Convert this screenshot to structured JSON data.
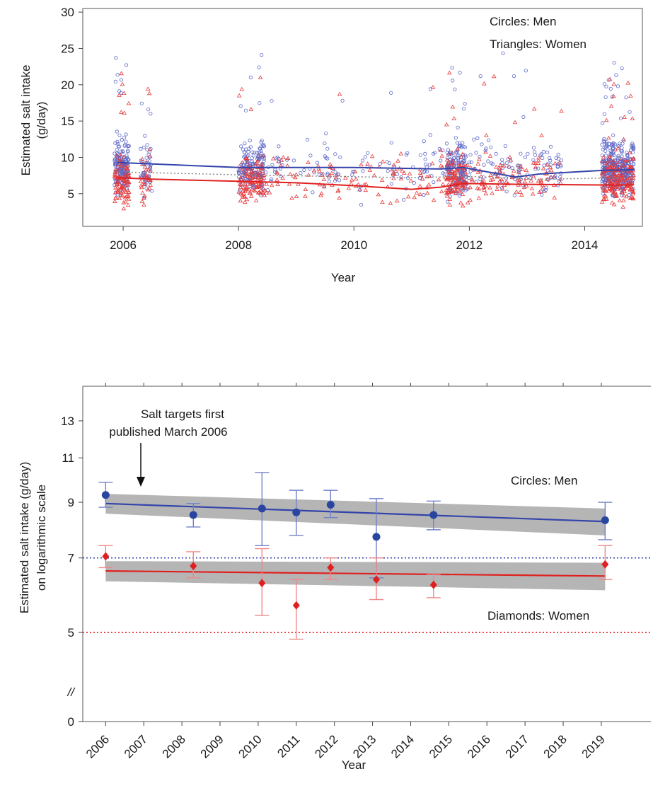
{
  "chart_data": [
    {
      "type": "scatter",
      "xlabel": "Year",
      "ylabel_lines": [
        "Estimated  salt intake",
        "(g/day)"
      ],
      "xlim": [
        2005.3,
        2015.0
      ],
      "ylim": [
        0.5,
        30.5
      ],
      "xticks": [
        "2006",
        "2008",
        "2010",
        "2012",
        "2014"
      ],
      "yticks": [
        "5",
        "10",
        "15",
        "20",
        "25",
        "30"
      ],
      "annotations": [
        "Circles: Men",
        "Triangles: Women"
      ],
      "survey_clusters": [
        {
          "x_start": 2005.85,
          "x_end": 2006.1,
          "density": "high"
        },
        {
          "x_start": 2006.3,
          "x_end": 2006.5,
          "density": "medium"
        },
        {
          "x_start": 2008.0,
          "x_end": 2008.45,
          "density": "high"
        },
        {
          "x_start": 2008.45,
          "x_end": 2011.6,
          "density": "sparse"
        },
        {
          "x_start": 2011.6,
          "x_end": 2011.95,
          "density": "high"
        },
        {
          "x_start": 2011.95,
          "x_end": 2013.6,
          "density": "sparse"
        },
        {
          "x_start": 2014.3,
          "x_end": 2014.55,
          "density": "high"
        },
        {
          "x_start": 2014.55,
          "x_end": 2014.85,
          "density": "high"
        }
      ],
      "trend_lines": [
        {
          "group": "men",
          "color": "#3344aa",
          "x": [
            2005.9,
            2006.5,
            2008.0,
            2010.0,
            2011.5,
            2011.9,
            2012.8,
            2013.2,
            2014.3,
            2014.85
          ],
          "y": [
            9.3,
            9.1,
            8.6,
            8.6,
            8.4,
            8.6,
            7.3,
            7.7,
            8.2,
            8.3
          ]
        },
        {
          "group": "overall",
          "color": "#888888",
          "dashed": true,
          "x": [
            2005.9,
            2008.0,
            2011.0,
            2011.9,
            2013.2,
            2014.85
          ],
          "y": [
            8.0,
            7.6,
            7.2,
            7.4,
            7.0,
            7.2
          ]
        },
        {
          "group": "women",
          "color": "#e02020",
          "x": [
            2005.9,
            2006.5,
            2008.0,
            2009.0,
            2010.0,
            2011.0,
            2011.5,
            2011.9,
            2012.8,
            2014.3,
            2014.85
          ],
          "y": [
            7.2,
            7.0,
            6.7,
            6.5,
            6.1,
            5.6,
            5.9,
            6.4,
            6.3,
            6.2,
            6.2
          ]
        }
      ]
    },
    {
      "type": "scatter",
      "xlabel": "Year",
      "ylabel_lines": [
        "Estimated  salt intake  (g/day)",
        "on logarithmic scale"
      ],
      "log_y": true,
      "ylim": [
        4.05,
        15.2
      ],
      "xlim": [
        2005.4,
        2020.3
      ],
      "xticks": [
        "2006",
        "2007",
        "2008",
        "2009",
        "2010",
        "2011",
        "2012",
        "2013",
        "2014",
        "2015",
        "2016",
        "2017",
        "2018",
        "2019"
      ],
      "yticks": [
        "5",
        "7",
        "9",
        "11",
        "13"
      ],
      "ytick_zero": "0",
      "axis_break": "//",
      "annotations": [
        "Salt targets first",
        "published March 2006",
        "Circles:  Men",
        "Diamonds:  Women"
      ],
      "reference_lines": [
        {
          "y": 7,
          "color": "#3344aa",
          "dashed": true
        },
        {
          "y": 5,
          "color": "#e02020",
          "dashed": true
        }
      ],
      "series": [
        {
          "name": "Circles:  Men",
          "marker": "circle",
          "color": "#2a45a0",
          "error_color": "#7280c8",
          "x": [
            2006.0,
            2008.3,
            2010.1,
            2011.0,
            2011.9,
            2013.1,
            2014.6,
            2019.1
          ],
          "y": [
            9.3,
            8.5,
            8.75,
            8.6,
            8.9,
            7.7,
            8.5,
            8.3
          ],
          "lower": [
            8.8,
            8.05,
            7.4,
            7.75,
            8.4,
            6.4,
            7.95,
            7.6
          ],
          "upper": [
            9.85,
            8.95,
            10.3,
            9.5,
            9.5,
            9.15,
            9.05,
            9.0
          ]
        },
        {
          "name": "Diamonds:  Women",
          "marker": "diamond",
          "color": "#e02020",
          "error_color": "#ee8888",
          "x": [
            2006.0,
            2008.3,
            2010.1,
            2011.0,
            2011.9,
            2013.1,
            2014.6,
            2019.1
          ],
          "y": [
            7.05,
            6.75,
            6.25,
            5.65,
            6.7,
            6.35,
            6.2,
            6.8
          ],
          "lower": [
            6.7,
            6.4,
            5.4,
            4.85,
            6.35,
            5.8,
            5.85,
            6.35
          ],
          "upper": [
            7.4,
            7.2,
            7.3,
            6.35,
            7.0,
            7.0,
            6.5,
            7.4
          ]
        }
      ],
      "fits": [
        {
          "group": "men",
          "color": "#3344aa",
          "x": [
            2006.0,
            2019.1
          ],
          "y": [
            8.95,
            8.25
          ],
          "band_lower": [
            8.55,
            7.75
          ],
          "band_upper": [
            9.35,
            8.75
          ]
        },
        {
          "group": "women",
          "color": "#e02020",
          "x": [
            2006.0,
            2019.1
          ],
          "y": [
            6.6,
            6.45
          ],
          "band_lower": [
            6.3,
            6.05
          ],
          "band_upper": [
            6.9,
            6.85
          ]
        }
      ]
    }
  ]
}
